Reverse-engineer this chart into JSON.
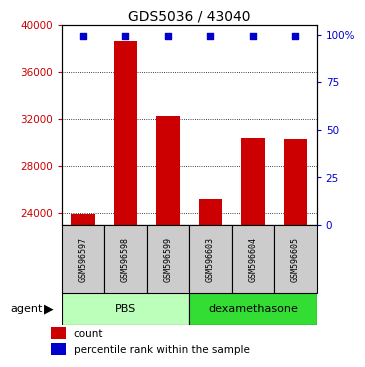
{
  "title": "GDS5036 / 43040",
  "samples": [
    "GSM596597",
    "GSM596598",
    "GSM596599",
    "GSM596603",
    "GSM596604",
    "GSM596605"
  ],
  "counts": [
    23900,
    38600,
    32300,
    25200,
    30400,
    30300
  ],
  "percentile_ranks": [
    99,
    99,
    99,
    99,
    99,
    99
  ],
  "y_min": 23000,
  "y_max": 40000,
  "y_ticks": [
    24000,
    28000,
    32000,
    36000,
    40000
  ],
  "y2_ticks": [
    0,
    25,
    50,
    75,
    100
  ],
  "bar_color": "#cc0000",
  "dot_color": "#0000cc",
  "pbs_color": "#bbffbb",
  "dex_color": "#33dd33",
  "sample_box_color": "#cccccc",
  "groups": [
    {
      "label": "PBS",
      "start": 0,
      "end": 2
    },
    {
      "label": "dexamethasone",
      "start": 3,
      "end": 5
    }
  ],
  "agent_label": "agent",
  "legend_count_label": "count",
  "legend_pct_label": "percentile rank within the sample",
  "y_tick_color": "#cc0000",
  "y2_tick_color": "#0000cc",
  "title_fontsize": 10,
  "tick_fontsize": 7.5,
  "sample_fontsize": 6,
  "group_fontsize": 8,
  "legend_fontsize": 7.5
}
